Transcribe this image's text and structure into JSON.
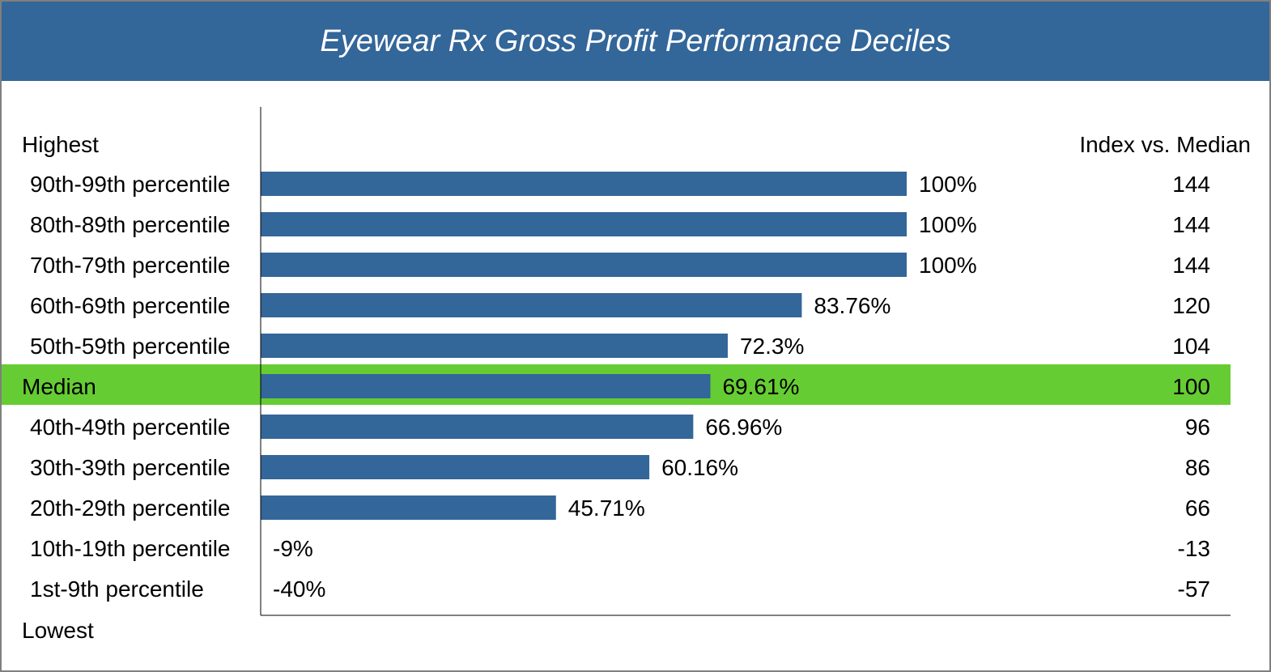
{
  "chart_data": {
    "type": "bar",
    "orientation": "horizontal",
    "title": "Eyewear Rx Gross Profit Performance Deciles",
    "top_label": "Highest",
    "bottom_label": "Lowest",
    "index_header": "Index vs. Median",
    "categories": [
      "90th-99th percentile",
      "80th-89th percentile",
      "70th-79th percentile",
      "60th-69th percentile",
      "50th-59th percentile",
      "Median",
      "40th-49th percentile",
      "30th-39th percentile",
      "20th-29th percentile",
      "10th-19th percentile",
      "1st-9th percentile"
    ],
    "values": [
      100,
      100,
      100,
      83.76,
      72.3,
      69.61,
      66.96,
      60.16,
      45.71,
      -9,
      -40
    ],
    "value_labels": [
      "100%",
      "100%",
      "100%",
      "83.76%",
      "72.3%",
      "69.61%",
      "66.96%",
      "60.16%",
      "45.71%",
      "-9%",
      "-40%"
    ],
    "index_values": [
      "144",
      "144",
      "144",
      "120",
      "104",
      "100",
      "96",
      "86",
      "66",
      "-13",
      "-57"
    ],
    "highlight_category": "Median",
    "xlim": [
      0,
      100
    ],
    "grid": false,
    "legend": "none",
    "colors": {
      "bar": "#336699",
      "highlight": "#66cc33",
      "title_bar": "#336699"
    }
  }
}
